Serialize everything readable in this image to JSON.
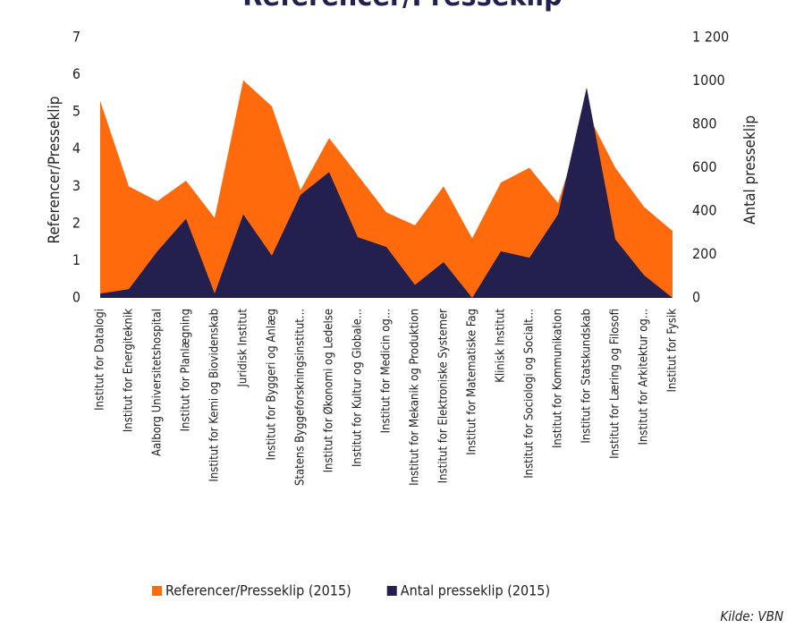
{
  "chart_data": {
    "type": "area",
    "title": "Referencer/Presseklip",
    "y_label": "Referencer/Presseklip",
    "y2_label": "Antal presseklip",
    "source": "Kilde: VBN",
    "categories": [
      "Institut for Datalogi",
      "Institut for Energiteknik",
      "Aalborg Universitetshospital",
      "Institut for Planlægning",
      "Institut for Kemi og Biovidenskab",
      "Juridisk Institut",
      "Institut for Byggeri og Anlæg",
      "Statens Byggeforskningsinstitut...",
      "Institut for Økonomi og Ledelse",
      "Institut for Kultur og Globale...",
      "Institut for Medicin og...",
      "Institut for Mekanik og Produktion",
      "Institut for Elektroniske Systemer",
      "Institut for Matematiske Fag",
      "Klinisk Institut",
      "Institut for Sociologi og Socialt...",
      "Institut for Kommunikation",
      "Institut for Statskundskab",
      "Institut for Læring og Filosofi",
      "Institut for Arkitektur og...",
      "Institut for Fysik"
    ],
    "series": [
      {
        "name": "Referencer/Presseklip (2015)",
        "color": "#ff6a0d",
        "axis": "y",
        "values": [
          5.3,
          3.0,
          2.6,
          3.15,
          2.15,
          5.85,
          5.15,
          2.9,
          4.3,
          3.3,
          2.3,
          1.95,
          3.0,
          1.6,
          3.1,
          3.5,
          2.55,
          5.0,
          3.5,
          2.45,
          1.8
        ]
      },
      {
        "name": "Antal presseklip (2015)",
        "color": "#231f4f",
        "axis": "y2",
        "values": [
          20,
          40,
          215,
          365,
          20,
          385,
          195,
          475,
          580,
          280,
          235,
          60,
          165,
          0,
          215,
          185,
          385,
          970,
          270,
          105,
          0
        ]
      }
    ],
    "ylim": [
      0,
      7
    ],
    "yticks": [
      0,
      1,
      2,
      3,
      4,
      5,
      6,
      7
    ],
    "y2lim": [
      0,
      1200
    ],
    "y2ticks": [
      0,
      200,
      400,
      600,
      800,
      1000,
      {
        "value": 1200,
        "label": "1 200"
      }
    ]
  }
}
